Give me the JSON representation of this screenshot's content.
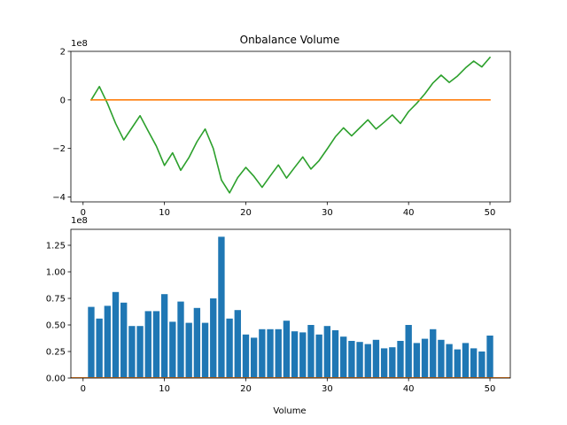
{
  "colors": {
    "obv_line": "#2ca02c",
    "zero_line": "#ff7f0e",
    "bars": "#1f77b4"
  },
  "chart_data": [
    {
      "type": "line",
      "title": "Onbalance Volume",
      "xlabel": "",
      "ylabel": "",
      "ylim": [
        -420000000.0,
        200000000.0
      ],
      "xlim": [
        -1.5,
        52.5
      ],
      "y_offset_label": "1e8",
      "x_ticks": [
        {
          "value": 0,
          "label": "0"
        },
        {
          "value": 10,
          "label": "10"
        },
        {
          "value": 20,
          "label": "20"
        },
        {
          "value": 30,
          "label": "30"
        },
        {
          "value": 40,
          "label": "40"
        },
        {
          "value": 50,
          "label": "50"
        }
      ],
      "y_ticks": [
        {
          "value": 200000000.0,
          "label": "2"
        },
        {
          "value": 0,
          "label": "0"
        },
        {
          "value": -200000000.0,
          "label": "−2"
        },
        {
          "value": -400000000.0,
          "label": "−4"
        }
      ],
      "series": [
        {
          "key": "obv",
          "x": [
            1,
            2,
            3,
            4,
            5,
            6,
            7,
            8,
            9,
            10,
            11,
            12,
            13,
            14,
            15,
            16,
            17,
            18,
            19,
            20,
            21,
            22,
            23,
            24,
            25,
            26,
            27,
            28,
            29,
            30,
            31,
            32,
            33,
            34,
            35,
            36,
            37,
            38,
            39,
            40,
            41,
            42,
            43,
            44,
            45,
            46,
            47,
            48,
            49,
            50
          ],
          "values": [
            0,
            55000000.0,
            -15000000.0,
            -97000000.0,
            -165000000.0,
            -115000000.0,
            -65000000.0,
            -128000000.0,
            -190000000.0,
            -270000000.0,
            -218000000.0,
            -290000000.0,
            -238000000.0,
            -172000000.0,
            -120000000.0,
            -200000000.0,
            -330000000.0,
            -383000000.0,
            -320000000.0,
            -278000000.0,
            -315000000.0,
            -360000000.0,
            -313000000.0,
            -268000000.0,
            -322000000.0,
            -278000000.0,
            -235000000.0,
            -285000000.0,
            -250000000.0,
            -202000000.0,
            -152000000.0,
            -115000000.0,
            -148000000.0,
            -115000000.0,
            -82000000.0,
            -120000000.0,
            -92000000.0,
            -62000000.0,
            -97000000.0,
            -48000000.0,
            -14000000.0,
            25000000.0,
            70000000.0,
            102000000.0,
            72000000.0,
            98000000.0,
            132000000.0,
            160000000.0,
            136000000.0,
            175000000.0
          ]
        },
        {
          "key": "zero",
          "x": [
            1,
            50
          ],
          "values": [
            0,
            0
          ]
        }
      ]
    },
    {
      "type": "bar",
      "title": "",
      "xlabel": "Volume",
      "ylabel": "",
      "ylim": [
        0,
        140000000.0
      ],
      "xlim": [
        -1.5,
        52.5
      ],
      "y_offset_label": "1e8",
      "x_ticks": [
        {
          "value": 0,
          "label": "0"
        },
        {
          "value": 10,
          "label": "10"
        },
        {
          "value": 20,
          "label": "20"
        },
        {
          "value": 30,
          "label": "30"
        },
        {
          "value": 40,
          "label": "40"
        },
        {
          "value": 50,
          "label": "50"
        }
      ],
      "y_ticks": [
        {
          "value": 125000000.0,
          "label": "1.25"
        },
        {
          "value": 100000000.0,
          "label": "1.00"
        },
        {
          "value": 75000000.0,
          "label": "0.75"
        },
        {
          "value": 50000000.0,
          "label": "0.50"
        },
        {
          "value": 25000000.0,
          "label": "0.25"
        },
        {
          "value": 0,
          "label": "0.00"
        }
      ],
      "x": [
        1,
        2,
        3,
        4,
        5,
        6,
        7,
        8,
        9,
        10,
        11,
        12,
        13,
        14,
        15,
        16,
        17,
        18,
        19,
        20,
        21,
        22,
        23,
        24,
        25,
        26,
        27,
        28,
        29,
        30,
        31,
        32,
        33,
        34,
        35,
        36,
        37,
        38,
        39,
        40,
        41,
        42,
        43,
        44,
        45,
        46,
        47,
        48,
        49,
        50
      ],
      "values": [
        67000000.0,
        56000000.0,
        68000000.0,
        81000000.0,
        71000000.0,
        49000000.0,
        49000000.0,
        63000000.0,
        63000000.0,
        79000000.0,
        53000000.0,
        72000000.0,
        52000000.0,
        66000000.0,
        52000000.0,
        75000000.0,
        133000000.0,
        56000000.0,
        64000000.0,
        41000000.0,
        38000000.0,
        46000000.0,
        46000000.0,
        46000000.0,
        54000000.0,
        44000000.0,
        43000000.0,
        50000000.0,
        41000000.0,
        49000000.0,
        45000000.0,
        39000000.0,
        35000000.0,
        34000000.0,
        32000000.0,
        36000000.0,
        28000000.0,
        29000000.0,
        35000000.0,
        50000000.0,
        33000000.0,
        37000000.0,
        46000000.0,
        36000000.0,
        32000000.0,
        27000000.0,
        33000000.0,
        28000000.0,
        25000000.0,
        40000000.0
      ]
    }
  ]
}
